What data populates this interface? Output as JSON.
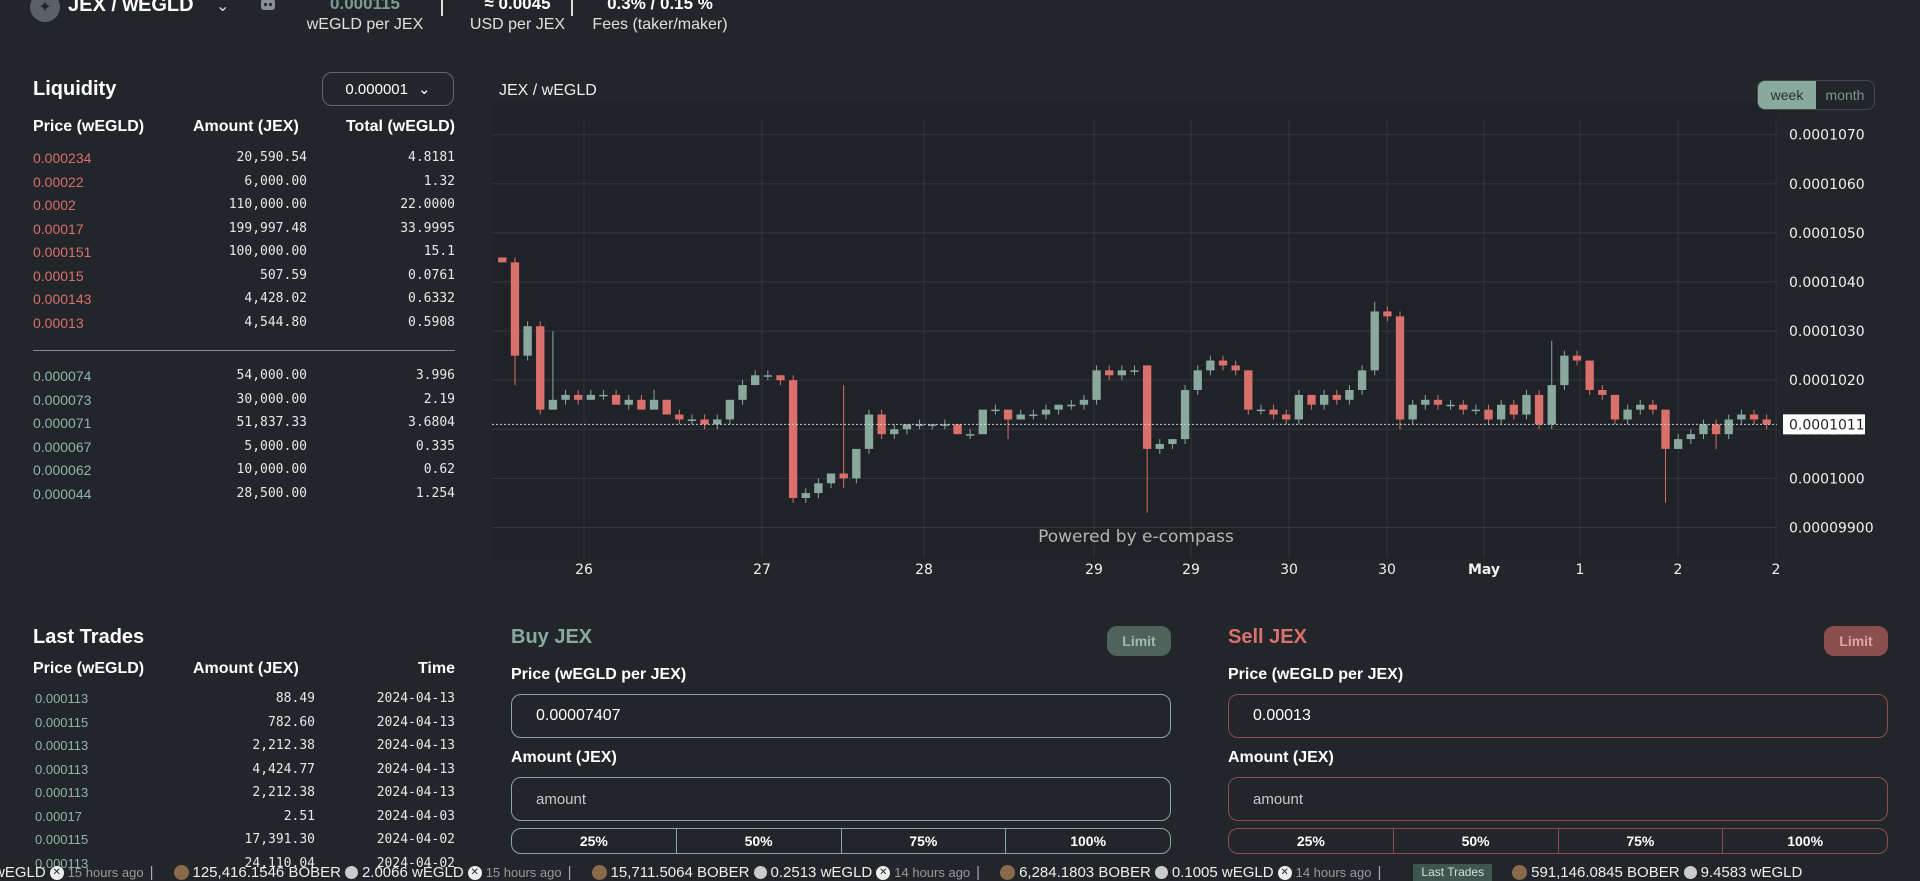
{
  "header": {
    "pair": "JEX / wEGLD",
    "stats": [
      {
        "value": "0.000115",
        "label": "wEGLD per JEX"
      },
      {
        "value": "≈ 0.0045",
        "label": "USD per JEX"
      },
      {
        "value": "0.3% / 0.15 %",
        "label": "Fees (taker/maker)"
      }
    ]
  },
  "liquidity": {
    "title": "Liquidity",
    "decimals": "0.000001",
    "headers": {
      "price": "Price (wEGLD)",
      "amount": "Amount (JEX)",
      "total": "Total (wEGLD)"
    },
    "asks": [
      {
        "price": "0.000234",
        "amount": "20,590.54",
        "total": "4.8181"
      },
      {
        "price": "0.00022",
        "amount": "6,000.00",
        "total": "1.32"
      },
      {
        "price": "0.0002",
        "amount": "110,000.00",
        "total": "22.0000"
      },
      {
        "price": "0.00017",
        "amount": "199,997.48",
        "total": "33.9995"
      },
      {
        "price": "0.000151",
        "amount": "100,000.00",
        "total": "15.1"
      },
      {
        "price": "0.00015",
        "amount": "507.59",
        "total": "0.0761"
      },
      {
        "price": "0.000143",
        "amount": "4,428.02",
        "total": "0.6332"
      },
      {
        "price": "0.00013",
        "amount": "4,544.80",
        "total": "0.5908"
      }
    ],
    "bids": [
      {
        "price": "0.000074",
        "amount": "54,000.00",
        "total": "3.996"
      },
      {
        "price": "0.000073",
        "amount": "30,000.00",
        "total": "2.19"
      },
      {
        "price": "0.000071",
        "amount": "51,837.33",
        "total": "3.6804"
      },
      {
        "price": "0.000067",
        "amount": "5,000.00",
        "total": "0.335"
      },
      {
        "price": "0.000062",
        "amount": "10,000.00",
        "total": "0.62"
      },
      {
        "price": "0.000044",
        "amount": "28,500.00",
        "total": "1.254"
      }
    ]
  },
  "chart": {
    "title": "JEX / wEGLD",
    "range": {
      "week": "week",
      "month": "month",
      "active": "week"
    },
    "watermark": "Powered by e-compass",
    "current_price_label": "0.0001011",
    "colors": {
      "up": "#8aa99e",
      "down": "#d9706b"
    }
  },
  "chart_data": {
    "type": "candlestick",
    "y_ticks": [
      "0.0001070",
      "0.0001060",
      "0.0001050",
      "0.0001040",
      "0.0001030",
      "0.0001020",
      "0.0001010",
      "0.0001000",
      "0.00009900"
    ],
    "ylim": [
      9.85e-05,
      0.0001073
    ],
    "x_ticks": [
      "26",
      "27",
      "28",
      "29",
      "29",
      "30",
      "30",
      "May",
      "1",
      "2",
      "2"
    ],
    "current_price": 0.0001011,
    "candles": [
      {
        "o": 0.0001045,
        "c": 0.0001044,
        "h": 0.0001045,
        "l": 0.0001044
      },
      {
        "o": 0.0001044,
        "c": 0.0001025,
        "h": 0.0001045,
        "l": 0.0001019
      },
      {
        "o": 0.0001025,
        "c": 0.0001031,
        "h": 0.0001032,
        "l": 0.0001024
      },
      {
        "o": 0.0001031,
        "c": 0.0001014,
        "h": 0.0001032,
        "l": 0.0001013
      },
      {
        "o": 0.0001014,
        "c": 0.0001016,
        "h": 0.000103,
        "l": 0.0001014
      },
      {
        "o": 0.0001016,
        "c": 0.0001017,
        "h": 0.0001018,
        "l": 0.0001015
      },
      {
        "o": 0.0001017,
        "c": 0.0001016,
        "h": 0.0001018,
        "l": 0.0001015
      },
      {
        "o": 0.0001016,
        "c": 0.0001017,
        "h": 0.0001018,
        "l": 0.0001016
      },
      {
        "o": 0.0001017,
        "c": 0.0001017,
        "h": 0.0001018,
        "l": 0.0001016
      },
      {
        "o": 0.0001017,
        "c": 0.0001015,
        "h": 0.0001018,
        "l": 0.0001015
      },
      {
        "o": 0.0001015,
        "c": 0.0001016,
        "h": 0.0001017,
        "l": 0.0001014
      },
      {
        "o": 0.0001016,
        "c": 0.0001014,
        "h": 0.0001017,
        "l": 0.0001014
      },
      {
        "o": 0.0001014,
        "c": 0.0001016,
        "h": 0.0001018,
        "l": 0.0001014
      },
      {
        "o": 0.0001016,
        "c": 0.0001013,
        "h": 0.0001016,
        "l": 0.0001013
      },
      {
        "o": 0.0001013,
        "c": 0.0001012,
        "h": 0.0001014,
        "l": 0.0001011
      },
      {
        "o": 0.0001012,
        "c": 0.0001012,
        "h": 0.0001013,
        "l": 0.0001011
      },
      {
        "o": 0.0001012,
        "c": 0.0001011,
        "h": 0.0001013,
        "l": 0.000101
      },
      {
        "o": 0.0001011,
        "c": 0.0001012,
        "h": 0.0001013,
        "l": 0.000101
      },
      {
        "o": 0.0001012,
        "c": 0.0001016,
        "h": 0.0001016,
        "l": 0.0001011
      },
      {
        "o": 0.0001016,
        "c": 0.0001019,
        "h": 0.000102,
        "l": 0.0001015
      },
      {
        "o": 0.0001019,
        "c": 0.0001021,
        "h": 0.0001022,
        "l": 0.0001019
      },
      {
        "o": 0.0001021,
        "c": 0.0001021,
        "h": 0.0001022,
        "l": 0.000102
      },
      {
        "o": 0.0001021,
        "c": 0.000102,
        "h": 0.0001021,
        "l": 0.0001019
      },
      {
        "o": 0.000102,
        "c": 9.96e-05,
        "h": 0.0001021,
        "l": 9.95e-05
      },
      {
        "o": 9.96e-05,
        "c": 9.97e-05,
        "h": 9.98e-05,
        "l": 9.95e-05
      },
      {
        "o": 9.97e-05,
        "c": 9.99e-05,
        "h": 0.0001,
        "l": 9.96e-05
      },
      {
        "o": 9.99e-05,
        "c": 0.0001001,
        "h": 0.0001001,
        "l": 9.98e-05
      },
      {
        "o": 0.0001001,
        "c": 0.0001,
        "h": 0.0001019,
        "l": 9.98e-05
      },
      {
        "o": 0.0001,
        "c": 0.0001006,
        "h": 0.0001006,
        "l": 9.99e-05
      },
      {
        "o": 0.0001006,
        "c": 0.0001013,
        "h": 0.0001014,
        "l": 0.0001005
      },
      {
        "o": 0.0001013,
        "c": 0.0001009,
        "h": 0.0001014,
        "l": 0.0001008
      },
      {
        "o": 0.0001009,
        "c": 0.000101,
        "h": 0.0001011,
        "l": 0.0001008
      },
      {
        "o": 0.000101,
        "c": 0.0001011,
        "h": 0.0001011,
        "l": 0.0001009
      },
      {
        "o": 0.0001011,
        "c": 0.0001011,
        "h": 0.0001012,
        "l": 0.000101
      },
      {
        "o": 0.0001011,
        "c": 0.0001011,
        "h": 0.0001011,
        "l": 0.000101
      },
      {
        "o": 0.0001011,
        "c": 0.0001011,
        "h": 0.0001012,
        "l": 0.000101
      },
      {
        "o": 0.0001011,
        "c": 0.0001009,
        "h": 0.0001011,
        "l": 0.0001009
      },
      {
        "o": 0.0001009,
        "c": 0.0001009,
        "h": 0.000101,
        "l": 0.0001008
      },
      {
        "o": 0.0001009,
        "c": 0.0001014,
        "h": 0.0001014,
        "l": 0.0001009
      },
      {
        "o": 0.0001014,
        "c": 0.0001014,
        "h": 0.0001015,
        "l": 0.0001013
      },
      {
        "o": 0.0001014,
        "c": 0.0001012,
        "h": 0.0001014,
        "l": 0.0001008
      },
      {
        "o": 0.0001012,
        "c": 0.0001013,
        "h": 0.0001014,
        "l": 0.0001012
      },
      {
        "o": 0.0001013,
        "c": 0.0001013,
        "h": 0.0001014,
        "l": 0.0001012
      },
      {
        "o": 0.0001013,
        "c": 0.0001014,
        "h": 0.0001015,
        "l": 0.0001012
      },
      {
        "o": 0.0001014,
        "c": 0.0001015,
        "h": 0.0001015,
        "l": 0.0001013
      },
      {
        "o": 0.0001015,
        "c": 0.0001015,
        "h": 0.0001016,
        "l": 0.0001014
      },
      {
        "o": 0.0001015,
        "c": 0.0001016,
        "h": 0.0001017,
        "l": 0.0001014
      },
      {
        "o": 0.0001016,
        "c": 0.0001022,
        "h": 0.0001023,
        "l": 0.0001015
      },
      {
        "o": 0.0001022,
        "c": 0.0001021,
        "h": 0.0001023,
        "l": 0.000102
      },
      {
        "o": 0.0001021,
        "c": 0.0001022,
        "h": 0.0001023,
        "l": 0.000102
      },
      {
        "o": 0.0001022,
        "c": 0.0001022,
        "h": 0.0001023,
        "l": 0.0001021
      },
      {
        "o": 0.0001023,
        "c": 0.0001006,
        "h": 0.0001023,
        "l": 9.93e-05
      },
      {
        "o": 0.0001006,
        "c": 0.0001007,
        "h": 0.0001008,
        "l": 0.0001005
      },
      {
        "o": 0.0001007,
        "c": 0.0001008,
        "h": 0.0001008,
        "l": 0.0001006
      },
      {
        "o": 0.0001008,
        "c": 0.0001018,
        "h": 0.0001019,
        "l": 0.0001007
      },
      {
        "o": 0.0001018,
        "c": 0.0001022,
        "h": 0.0001023,
        "l": 0.0001017
      },
      {
        "o": 0.0001022,
        "c": 0.0001024,
        "h": 0.0001025,
        "l": 0.0001021
      },
      {
        "o": 0.0001024,
        "c": 0.0001023,
        "h": 0.0001025,
        "l": 0.0001022
      },
      {
        "o": 0.0001023,
        "c": 0.0001022,
        "h": 0.0001024,
        "l": 0.0001021
      },
      {
        "o": 0.0001022,
        "c": 0.0001014,
        "h": 0.0001022,
        "l": 0.0001013
      },
      {
        "o": 0.0001014,
        "c": 0.0001014,
        "h": 0.0001015,
        "l": 0.0001013
      },
      {
        "o": 0.0001014,
        "c": 0.0001013,
        "h": 0.0001015,
        "l": 0.0001012
      },
      {
        "o": 0.0001013,
        "c": 0.0001012,
        "h": 0.0001014,
        "l": 0.0001011
      },
      {
        "o": 0.0001012,
        "c": 0.0001017,
        "h": 0.0001018,
        "l": 0.0001011
      },
      {
        "o": 0.0001017,
        "c": 0.0001015,
        "h": 0.0001017,
        "l": 0.0001014
      },
      {
        "o": 0.0001015,
        "c": 0.0001017,
        "h": 0.0001018,
        "l": 0.0001014
      },
      {
        "o": 0.0001017,
        "c": 0.0001016,
        "h": 0.0001018,
        "l": 0.0001015
      },
      {
        "o": 0.0001016,
        "c": 0.0001018,
        "h": 0.0001019,
        "l": 0.0001015
      },
      {
        "o": 0.0001018,
        "c": 0.0001022,
        "h": 0.0001023,
        "l": 0.0001017
      },
      {
        "o": 0.0001022,
        "c": 0.0001034,
        "h": 0.0001036,
        "l": 0.0001021
      },
      {
        "o": 0.0001034,
        "c": 0.0001033,
        "h": 0.0001035,
        "l": 0.0001032
      },
      {
        "o": 0.0001033,
        "c": 0.0001012,
        "h": 0.0001034,
        "l": 0.000101
      },
      {
        "o": 0.0001012,
        "c": 0.0001015,
        "h": 0.0001016,
        "l": 0.0001011
      },
      {
        "o": 0.0001015,
        "c": 0.0001016,
        "h": 0.0001017,
        "l": 0.0001014
      },
      {
        "o": 0.0001016,
        "c": 0.0001015,
        "h": 0.0001017,
        "l": 0.0001014
      },
      {
        "o": 0.0001015,
        "c": 0.0001015,
        "h": 0.0001016,
        "l": 0.0001014
      },
      {
        "o": 0.0001015,
        "c": 0.0001014,
        "h": 0.0001016,
        "l": 0.0001013
      },
      {
        "o": 0.0001014,
        "c": 0.0001014,
        "h": 0.0001015,
        "l": 0.0001013
      },
      {
        "o": 0.0001014,
        "c": 0.0001012,
        "h": 0.0001015,
        "l": 0.0001011
      },
      {
        "o": 0.0001012,
        "c": 0.0001015,
        "h": 0.0001016,
        "l": 0.0001011
      },
      {
        "o": 0.0001015,
        "c": 0.0001013,
        "h": 0.0001016,
        "l": 0.0001012
      },
      {
        "o": 0.0001013,
        "c": 0.0001017,
        "h": 0.0001018,
        "l": 0.0001012
      },
      {
        "o": 0.0001017,
        "c": 0.0001011,
        "h": 0.0001018,
        "l": 0.000101
      },
      {
        "o": 0.0001011,
        "c": 0.0001019,
        "h": 0.0001028,
        "l": 0.000101
      },
      {
        "o": 0.0001019,
        "c": 0.0001025,
        "h": 0.0001026,
        "l": 0.0001018
      },
      {
        "o": 0.0001025,
        "c": 0.0001024,
        "h": 0.0001026,
        "l": 0.0001023
      },
      {
        "o": 0.0001024,
        "c": 0.0001018,
        "h": 0.0001024,
        "l": 0.0001017
      },
      {
        "o": 0.0001018,
        "c": 0.0001017,
        "h": 0.0001019,
        "l": 0.0001016
      },
      {
        "o": 0.0001017,
        "c": 0.0001012,
        "h": 0.0001017,
        "l": 0.0001011
      },
      {
        "o": 0.0001012,
        "c": 0.0001014,
        "h": 0.0001015,
        "l": 0.0001011
      },
      {
        "o": 0.0001014,
        "c": 0.0001015,
        "h": 0.0001016,
        "l": 0.0001013
      },
      {
        "o": 0.0001015,
        "c": 0.0001014,
        "h": 0.0001016,
        "l": 0.0001013
      },
      {
        "o": 0.0001014,
        "c": 0.0001006,
        "h": 0.0001014,
        "l": 9.95e-05
      },
      {
        "o": 0.0001006,
        "c": 0.0001008,
        "h": 0.0001009,
        "l": 0.0001006
      },
      {
        "o": 0.0001008,
        "c": 0.0001009,
        "h": 0.000101,
        "l": 0.0001007
      },
      {
        "o": 0.0001009,
        "c": 0.0001011,
        "h": 0.0001012,
        "l": 0.0001008
      },
      {
        "o": 0.0001011,
        "c": 0.0001009,
        "h": 0.0001012,
        "l": 0.0001006
      },
      {
        "o": 0.0001009,
        "c": 0.0001012,
        "h": 0.0001013,
        "l": 0.0001008
      },
      {
        "o": 0.0001012,
        "c": 0.0001013,
        "h": 0.0001014,
        "l": 0.0001011
      },
      {
        "o": 0.0001013,
        "c": 0.0001012,
        "h": 0.0001014,
        "l": 0.0001011
      },
      {
        "o": 0.0001012,
        "c": 0.0001011,
        "h": 0.0001013,
        "l": 0.000101
      }
    ]
  },
  "last_trades": {
    "title": "Last Trades",
    "headers": {
      "price": "Price (wEGLD)",
      "amount": "Amount (JEX)",
      "time": "Time"
    },
    "rows": [
      {
        "price": "0.000113",
        "amount": "88.49",
        "time": "2024-04-13"
      },
      {
        "price": "0.000115",
        "amount": "782.60",
        "time": "2024-04-13"
      },
      {
        "price": "0.000113",
        "amount": "2,212.38",
        "time": "2024-04-13"
      },
      {
        "price": "0.000113",
        "amount": "4,424.77",
        "time": "2024-04-13"
      },
      {
        "price": "0.000113",
        "amount": "2,212.38",
        "time": "2024-04-13"
      },
      {
        "price": "0.00017",
        "amount": "2.51",
        "time": "2024-04-03"
      },
      {
        "price": "0.000115",
        "amount": "17,391.30",
        "time": "2024-04-02"
      },
      {
        "price": "0.000113",
        "amount": "24,110.04",
        "time": "2024-04-02"
      }
    ]
  },
  "buy": {
    "title": "Buy JEX",
    "badge": "Limit",
    "price_label": "Price (wEGLD per JEX)",
    "price_value": "0.00007407",
    "amount_label": "Amount (JEX)",
    "amount_placeholder": "amount",
    "pcts": [
      "25%",
      "50%",
      "75%",
      "100%"
    ]
  },
  "sell": {
    "title": "Sell JEX",
    "badge": "Limit",
    "price_label": "Price (wEGLD per JEX)",
    "price_value": "0.00013",
    "amount_label": "Amount (JEX)",
    "amount_placeholder": "amount",
    "pcts": [
      "25%",
      "50%",
      "75%",
      "100%"
    ]
  },
  "ticker": {
    "items": [
      {
        "lead": "wEGLD",
        "ago": "15 hours ago"
      },
      {
        "amount": "125,416.1546",
        "token": "BOBER",
        "amount2": "2.0066",
        "token2": "wEGLD",
        "ago": "15 hours ago"
      },
      {
        "amount": "15,711.5064",
        "token": "BOBER",
        "amount2": "0.2513",
        "token2": "wEGLD",
        "ago": "14 hours ago"
      },
      {
        "amount": "6,284.1803",
        "token": "BOBER",
        "amount2": "0.1005",
        "token2": "wEGLD",
        "ago": "14 hours ago"
      }
    ],
    "tag": "Last Trades",
    "after_tag": {
      "amount": "591,146.0845",
      "token": "BOBER",
      "amount2": "9.4583",
      "token2": "wEGLD"
    }
  }
}
